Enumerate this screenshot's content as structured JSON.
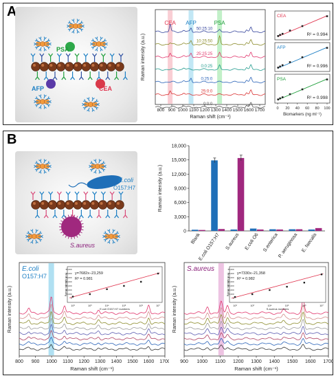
{
  "panels": {
    "a_label": "A",
    "b_label": "B"
  },
  "illus_a": {
    "psa": "PSA",
    "afp": "AFP",
    "cea": "CEA"
  },
  "illus_b": {
    "ecoli_line1": "E.coli",
    "ecoli_line2": "O157:H7",
    "saureus": "S.aureus"
  },
  "chart_data": [
    {
      "id": "a_spectra",
      "type": "line",
      "xlabel": "Raman shift (cm⁻¹)",
      "ylabel": "Raman intensity (a.u.)",
      "xlim": [
        750,
        1750
      ],
      "xticks": [
        800,
        900,
        1000,
        1100,
        1200,
        1300,
        1400,
        1500,
        1600,
        1700
      ],
      "bands": [
        {
          "name": "CEA",
          "x": 885,
          "color": "#f4a6b0",
          "text_color": "#e0334d"
        },
        {
          "name": "AFP",
          "x": 1075,
          "color": "#8fd3ec",
          "text_color": "#1c7fc4"
        },
        {
          "name": "PSA",
          "x": 1335,
          "color": "#8fe39a",
          "text_color": "#1e9e3a"
        }
      ],
      "peaks": [
        885,
        1075,
        1335,
        1580,
        1620
      ],
      "series": [
        {
          "name": "50:25:10",
          "color": "#34449c",
          "w": [
            1.0,
            0.5,
            0.2
          ]
        },
        {
          "name": "10:25:50",
          "color": "#8a8a28",
          "w": [
            0.2,
            0.5,
            1.0
          ]
        },
        {
          "name": "25:25:25",
          "color": "#e0336a",
          "w": [
            0.5,
            0.5,
            0.5
          ]
        },
        {
          "name": "0:0:25",
          "color": "#1f9a8c",
          "w": [
            0.0,
            0.0,
            0.5
          ]
        },
        {
          "name": "0:25:0",
          "color": "#2a63b8",
          "w": [
            0.0,
            0.5,
            0.0
          ]
        },
        {
          "name": "25:0:0",
          "color": "#d93030",
          "w": [
            0.5,
            0.0,
            0.0
          ]
        },
        {
          "name": "0:0:0",
          "color": "#555555",
          "w": [
            0.0,
            0.0,
            0.0
          ]
        }
      ]
    },
    {
      "id": "a_calibration",
      "type": "scatter",
      "xlabel": "Biomarkers (ng ml⁻¹)",
      "xlim": [
        0,
        100
      ],
      "xticks": [
        0,
        20,
        40,
        60,
        80,
        100
      ],
      "subplots": [
        {
          "name": "CEA",
          "r2": "R² = 0.994",
          "color": "#e0334d",
          "x": [
            1,
            5,
            10,
            25,
            50,
            100
          ],
          "y": [
            0.05,
            0.1,
            0.15,
            0.3,
            0.5,
            0.95
          ]
        },
        {
          "name": "AFP",
          "r2": "R² = 0.996",
          "color": "#1c7fc4",
          "x": [
            1,
            5,
            10,
            25,
            50,
            100
          ],
          "y": [
            0.05,
            0.1,
            0.16,
            0.3,
            0.52,
            0.95
          ]
        },
        {
          "name": "PSA",
          "r2": "R² = 0.998",
          "color": "#1e9e3a",
          "x": [
            1,
            5,
            10,
            25,
            50,
            100
          ],
          "y": [
            0.04,
            0.09,
            0.14,
            0.28,
            0.5,
            0.95
          ]
        }
      ]
    },
    {
      "id": "b_bar",
      "type": "bar",
      "ylabel": "Raman intensity (a.u.)",
      "ylim": [
        0,
        18000
      ],
      "yticks": [
        0,
        3000,
        6000,
        9000,
        12000,
        15000,
        18000
      ],
      "ytick_labels": [
        "0",
        "3,000",
        "6,000",
        "9,000",
        "12,000",
        "15,000",
        "18,000"
      ],
      "categories": [
        "Blank",
        "E.coli O157:H7",
        "S.aureus",
        "E.coli O6",
        "S.enterica",
        "P. aeruginosa",
        "E. faecalis"
      ],
      "series": [
        {
          "color": "#1f6fb8",
          "values": [
            250,
            14900,
            300,
            500,
            350,
            350,
            300
          ]
        },
        {
          "color": "#a0287e",
          "values": [
            200,
            400,
            15400,
            300,
            300,
            350,
            600
          ]
        }
      ],
      "errors": [
        [
          0,
          500,
          0,
          0,
          0,
          0,
          0
        ],
        [
          0,
          0,
          600,
          0,
          0,
          0,
          0
        ]
      ]
    },
    {
      "id": "b_ecoli",
      "type": "line",
      "title_line1": "E.coli",
      "title_line2": "O157:H7",
      "xlabel": "Raman shift (cm⁻¹)",
      "ylabel": "Raman intensity (a.u.)",
      "xlim": [
        800,
        1700
      ],
      "xticks": [
        800,
        900,
        1000,
        1100,
        1200,
        1300,
        1400,
        1500,
        1600,
        1700
      ],
      "band": {
        "x": 998,
        "color": "#8fd3ec"
      },
      "peaks": [
        {
          "x": 860,
          "h": 0.8
        },
        {
          "x": 998,
          "h": 3.0
        },
        {
          "x": 1080,
          "h": 1.3
        },
        {
          "x": 1290,
          "h": 0.6
        },
        {
          "x": 1600,
          "h": 1.3
        }
      ],
      "n_series": 8,
      "colors": [
        "#e0336a",
        "#d48a8a",
        "#8a8a28",
        "#9a9a9a",
        "#5a5ab0",
        "#b04060",
        "#2a63b8",
        "#333333"
      ],
      "inset": {
        "eq": "y=7682x−23,259",
        "r2": "R² = 0.981",
        "xlabel": "E.coli O157:H7 numbers",
        "ylabel": "Raman intensity (a.u.)",
        "yticks": [
          "0",
          "5,000",
          "10,000",
          "15,000",
          "20,000",
          "25,000",
          "30,000",
          "35,000"
        ],
        "xtick_labels": [
          "10²",
          "10³",
          "10⁴",
          "10⁵",
          "10⁶",
          "10⁷"
        ],
        "x": [
          2,
          3,
          4,
          5,
          6,
          7
        ],
        "y": [
          2000,
          5000,
          11000,
          15000,
          20000,
          30000
        ]
      }
    },
    {
      "id": "b_saureus",
      "type": "line",
      "title": "S.aureus",
      "xlabel": "Raman shift (cm⁻¹)",
      "ylabel": "Raman intensity (a.u.)",
      "xlim": [
        900,
        1700
      ],
      "xticks": [
        900,
        1000,
        1100,
        1200,
        1300,
        1400,
        1500,
        1600,
        1700
      ],
      "band": {
        "x": 1105,
        "color": "#e6a9d6"
      },
      "peaks": [
        {
          "x": 1030,
          "h": 1.2
        },
        {
          "x": 1105,
          "h": 2.0
        },
        {
          "x": 1140,
          "h": 1.5
        },
        {
          "x": 1450,
          "h": 0.7
        },
        {
          "x": 1560,
          "h": 2.4
        }
      ],
      "n_series": 8,
      "colors": [
        "#e0336a",
        "#d48a8a",
        "#8a8a28",
        "#9a9a9a",
        "#5a5ab0",
        "#b04060",
        "#2a63b8",
        "#333333"
      ],
      "inset": {
        "eq": "y=7330x−21,358",
        "r2": "R² = 0.982",
        "xlabel": "S.aureus numbers",
        "ylabel": "Raman intensity (a.u.)",
        "yticks": [
          "0",
          "5,000",
          "10,000",
          "15,000",
          "20,000",
          "25,000",
          "30,000",
          "35,000"
        ],
        "xtick_labels": [
          "10²",
          "10³",
          "10⁴",
          "10⁵",
          "10⁶",
          "10⁷"
        ],
        "x": [
          2,
          3,
          4,
          5,
          6,
          7
        ],
        "y": [
          1500,
          5000,
          10000,
          14000,
          19000,
          29000
        ]
      }
    }
  ]
}
